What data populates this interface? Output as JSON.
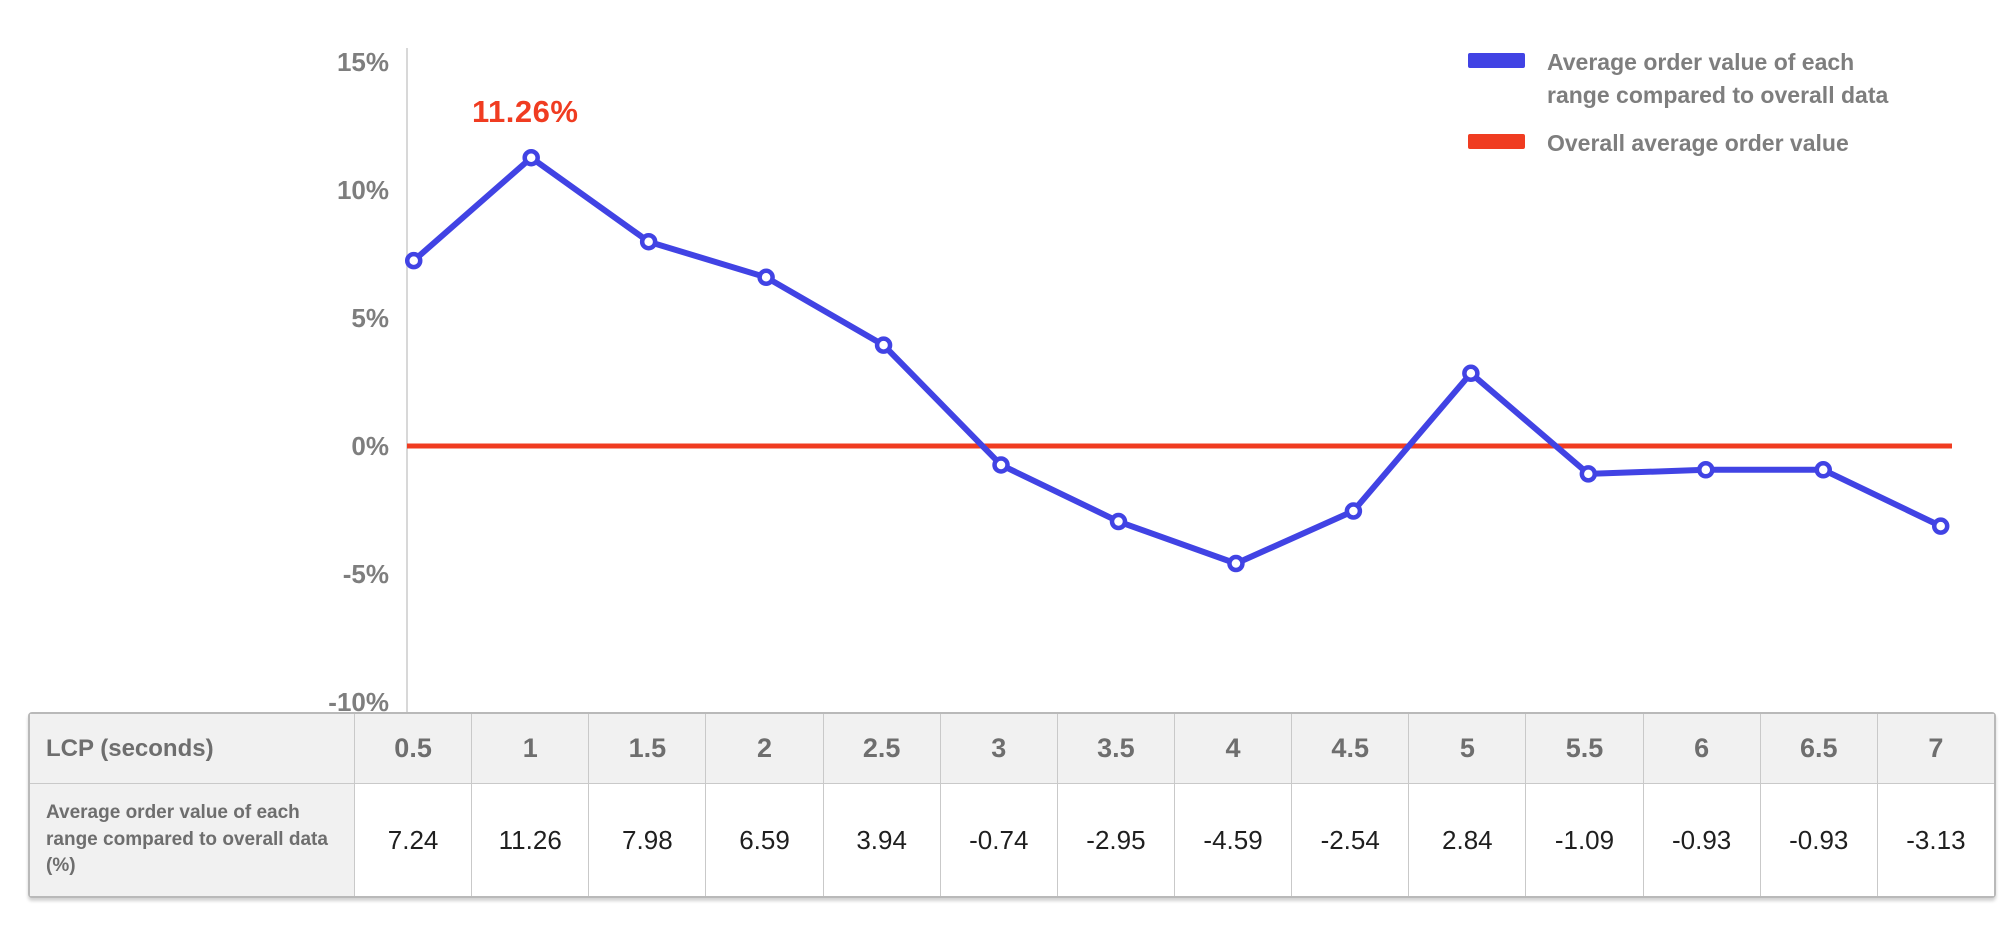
{
  "colors": {
    "series_blue": "#4143e4",
    "series_red": "#f03c21",
    "axis_text": "#7e7e7e",
    "axis_line": "#d8d8d8"
  },
  "chart_data": {
    "type": "line",
    "x": [
      0.5,
      1,
      1.5,
      2,
      2.5,
      3,
      3.5,
      4,
      4.5,
      5,
      5.5,
      6,
      6.5,
      7
    ],
    "xlabel": "LCP (seconds)",
    "ylabel": "",
    "ylim": [
      -10,
      15
    ],
    "yticks": [
      {
        "label": "15%",
        "value": 15
      },
      {
        "label": "10%",
        "value": 10
      },
      {
        "label": "5%",
        "value": 5
      },
      {
        "label": "0%",
        "value": 0
      },
      {
        "label": "-5%",
        "value": -5
      },
      {
        "label": "-10%",
        "value": -10
      }
    ],
    "grid": false,
    "legend_position": "top-right",
    "series": [
      {
        "name": "Average order value of each range compared to overall data",
        "color": "#4143e4",
        "values": [
          7.24,
          11.26,
          7.98,
          6.59,
          3.94,
          -0.74,
          -2.95,
          -4.59,
          -2.54,
          2.84,
          -1.09,
          -0.93,
          -0.93,
          -3.13
        ]
      },
      {
        "name": "Overall average order value",
        "color": "#f03c21",
        "constant_value": 0
      }
    ],
    "annotation": {
      "text": "11.26%",
      "at_x": 1,
      "at_y": 11.26,
      "color": "#f03c21"
    }
  },
  "legend": {
    "items": [
      {
        "label": "Average order value of each range compared to overall data",
        "color": "#4143e4"
      },
      {
        "label": "Overall average order value",
        "color": "#f03c21"
      }
    ]
  },
  "table": {
    "header_label": "LCP (seconds)",
    "row_label": "Average order value of each range compared to overall data (%)",
    "columns": [
      "0.5",
      "1",
      "1.5",
      "2",
      "2.5",
      "3",
      "3.5",
      "4",
      "4.5",
      "5",
      "5.5",
      "6",
      "6.5",
      "7"
    ],
    "values": [
      "7.24",
      "11.26",
      "7.98",
      "6.59",
      "3.94",
      "-0.74",
      "-2.95",
      "-4.59",
      "-2.54",
      "2.84",
      "-1.09",
      "-0.93",
      "-0.93",
      "-3.13"
    ]
  }
}
